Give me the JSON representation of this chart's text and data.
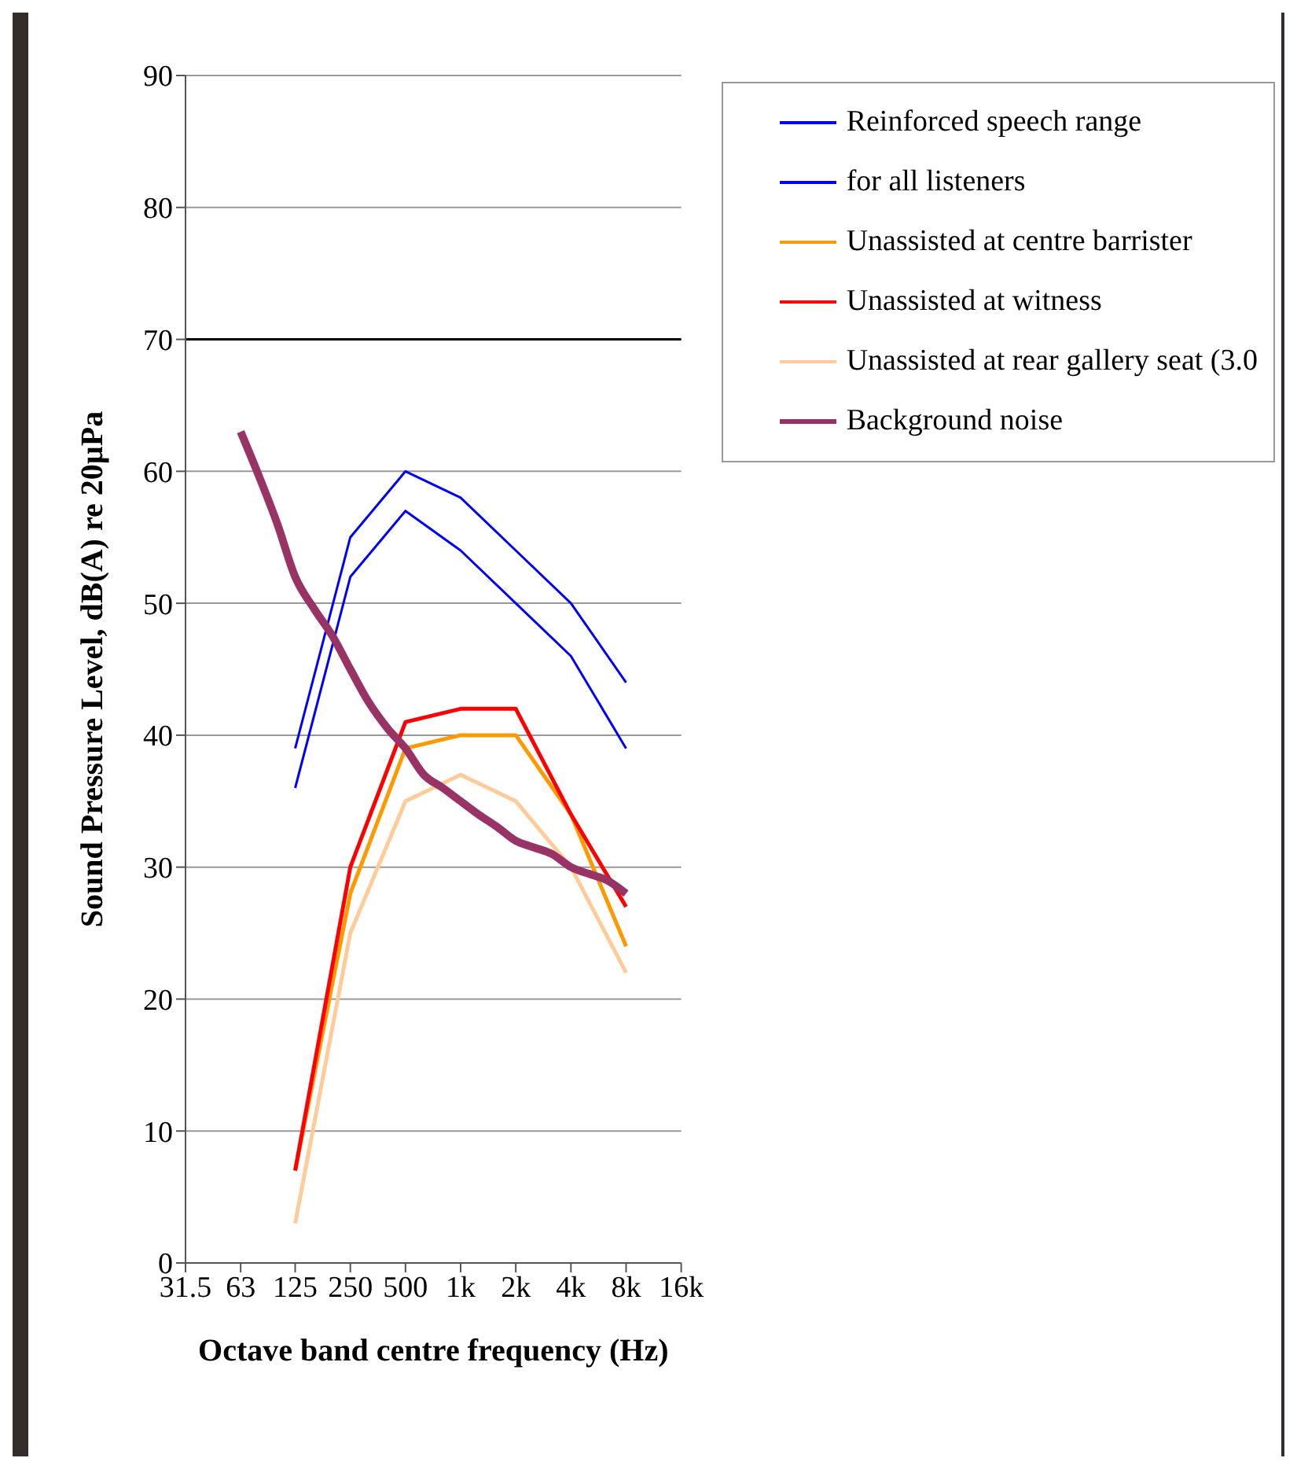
{
  "chart_data": {
    "type": "line",
    "xlabel": "Octave band centre frequency (Hz)",
    "ylabel": "Sound Pressure Level, dB(A) re 20µPa",
    "log": "x",
    "xlim": [
      31.5,
      16000
    ],
    "xticks": [
      31.5,
      63,
      125,
      250,
      500,
      {
        "value": 1000,
        "label": "1k"
      },
      {
        "value": 2000,
        "label": "2k"
      },
      {
        "value": 4000,
        "label": "4k"
      },
      {
        "value": 8000,
        "label": "8k"
      },
      {
        "value": 16000,
        "label": "16k"
      }
    ],
    "ylim": [
      0,
      90
    ],
    "yticks": [
      0,
      10,
      20,
      30,
      40,
      50,
      60,
      70,
      80,
      90
    ],
    "grid": "y",
    "legend": "top right",
    "marker": "none",
    "line_style": "solid",
    "ref_lines": [
      {
        "axis": "y",
        "value": 70,
        "color": "#000000"
      }
    ],
    "series": [
      {
        "name": "Reinforced speech range",
        "color": "#0000ff",
        "x": [
          125,
          250,
          500,
          1000,
          2000,
          4000,
          8000
        ],
        "values": [
          39,
          55,
          60,
          58,
          54,
          50,
          44
        ]
      },
      {
        "name": "for all listeners",
        "color": "#0000ff",
        "x": [
          125,
          250,
          500,
          1000,
          2000,
          4000,
          8000
        ],
        "values": [
          36,
          52,
          57,
          54,
          50,
          46,
          39
        ]
      },
      {
        "name": "Unassisted at centre barrister",
        "color": "#ff9900",
        "x": [
          125,
          250,
          500,
          1000,
          2000,
          4000,
          8000
        ],
        "values": [
          7,
          28,
          39,
          40,
          40,
          34,
          24
        ]
      },
      {
        "name": "Unassisted at witness",
        "color": "#ff0000",
        "x": [
          125,
          250,
          500,
          1000,
          2000,
          4000,
          8000
        ],
        "values": [
          7,
          30,
          41,
          42,
          42,
          34,
          27
        ]
      },
      {
        "name": "Unassisted at rear gallery seat (3.0",
        "color": "#ffcc99",
        "x": [
          125,
          250,
          500,
          1000,
          2000,
          4000,
          8000
        ],
        "values": [
          3,
          25,
          35,
          37,
          35,
          30,
          22
        ]
      },
      {
        "name": "Background noise",
        "color": "#993366",
        "x": [
          63,
          80,
          100,
          125,
          160,
          200,
          250,
          315,
          400,
          500,
          630,
          800,
          1000,
          1250,
          1600,
          2000,
          2500,
          3150,
          4000,
          5000,
          6300,
          8000
        ],
        "values": [
          63,
          59.5,
          56,
          52,
          49.5,
          47.5,
          45,
          42.5,
          40.5,
          39,
          37,
          36,
          35,
          34,
          33,
          32,
          31.5,
          31,
          30,
          29.5,
          29,
          28
        ]
      }
    ]
  }
}
